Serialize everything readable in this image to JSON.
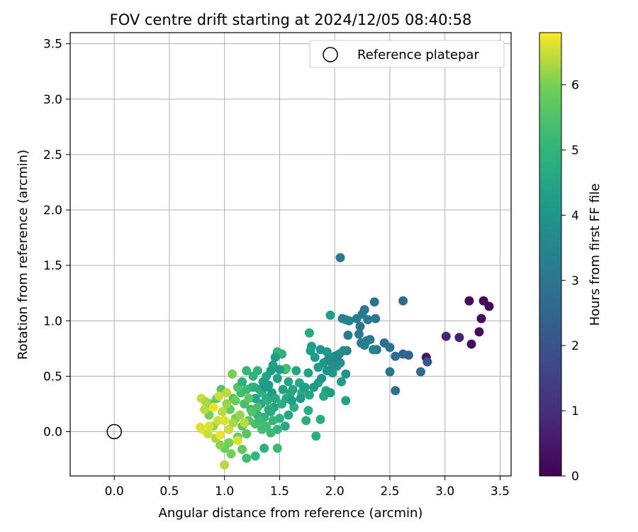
{
  "chart_data": {
    "type": "scatter",
    "title": "FOV centre drift starting at 2024/12/05 08:40:58",
    "xlabel": "Angular distance from reference (arcmin)",
    "ylabel": "Rotation from reference (arcmin)",
    "xlim": [
      -0.4,
      3.6
    ],
    "ylim": [
      -0.4,
      3.6
    ],
    "xticks": [
      "0.0",
      "0.5",
      "1.0",
      "1.5",
      "2.0",
      "2.5",
      "3.0",
      "3.5"
    ],
    "yticks": [
      "0.0",
      "0.5",
      "1.0",
      "1.5",
      "2.0",
      "2.5",
      "3.0",
      "3.5"
    ],
    "grid": true,
    "legend": {
      "label": "Reference platepar",
      "position": "top-right"
    },
    "reference_point": {
      "x": 0.0,
      "y": 0.0
    },
    "colorbar": {
      "label": "Hours from first FF file",
      "min": 0,
      "max": 6.8,
      "ticks": [
        "0",
        "1",
        "2",
        "3",
        "4",
        "5",
        "6"
      ],
      "colormap": "viridis"
    },
    "points": [
      {
        "x": 3.4,
        "y": 1.13,
        "t": 0.05
      },
      {
        "x": 3.35,
        "y": 1.18,
        "t": 0.1
      },
      {
        "x": 3.22,
        "y": 1.18,
        "t": 0.15
      },
      {
        "x": 3.33,
        "y": 1.02,
        "t": 0.2
      },
      {
        "x": 3.31,
        "y": 0.9,
        "t": 0.25
      },
      {
        "x": 3.24,
        "y": 0.79,
        "t": 0.3
      },
      {
        "x": 2.83,
        "y": 0.67,
        "t": 0.4
      },
      {
        "x": 3.13,
        "y": 0.85,
        "t": 0.7
      },
      {
        "x": 3.01,
        "y": 0.86,
        "t": 0.8
      },
      {
        "x": 2.84,
        "y": 0.63,
        "t": 2.0
      },
      {
        "x": 2.78,
        "y": 0.54,
        "t": 2.6
      },
      {
        "x": 2.67,
        "y": 0.69,
        "t": 2.4
      },
      {
        "x": 2.62,
        "y": 0.7,
        "t": 2.5
      },
      {
        "x": 2.62,
        "y": 1.18,
        "t": 2.6
      },
      {
        "x": 2.55,
        "y": 0.68,
        "t": 2.7
      },
      {
        "x": 2.55,
        "y": 0.37,
        "t": 2.8
      },
      {
        "x": 2.5,
        "y": 0.54,
        "t": 2.9
      },
      {
        "x": 2.45,
        "y": 0.8,
        "t": 2.8
      },
      {
        "x": 2.5,
        "y": 0.76,
        "t": 2.9
      },
      {
        "x": 2.38,
        "y": 0.74,
        "t": 3.0
      },
      {
        "x": 2.36,
        "y": 1.17,
        "t": 2.9
      },
      {
        "x": 2.37,
        "y": 1.02,
        "t": 3.0
      },
      {
        "x": 2.32,
        "y": 0.83,
        "t": 3.0
      },
      {
        "x": 2.3,
        "y": 1.01,
        "t": 3.1
      },
      {
        "x": 2.27,
        "y": 1.1,
        "t": 3.0
      },
      {
        "x": 2.25,
        "y": 1.06,
        "t": 3.1
      },
      {
        "x": 2.23,
        "y": 0.95,
        "t": 3.0
      },
      {
        "x": 2.2,
        "y": 1.02,
        "t": 3.2
      },
      {
        "x": 2.24,
        "y": 0.8,
        "t": 3.1
      },
      {
        "x": 2.27,
        "y": 0.78,
        "t": 3.2
      },
      {
        "x": 2.22,
        "y": 0.88,
        "t": 3.2
      },
      {
        "x": 2.13,
        "y": 1.0,
        "t": 3.3
      },
      {
        "x": 2.12,
        "y": 0.87,
        "t": 3.3
      },
      {
        "x": 2.1,
        "y": 1.01,
        "t": 3.4
      },
      {
        "x": 2.05,
        "y": 1.57,
        "t": 3.1
      },
      {
        "x": 2.07,
        "y": 1.02,
        "t": 3.4
      },
      {
        "x": 2.35,
        "y": 0.74,
        "t": 3.4
      },
      {
        "x": 2.29,
        "y": 0.82,
        "t": 3.3
      },
      {
        "x": 2.11,
        "y": 0.73,
        "t": 3.5
      },
      {
        "x": 2.08,
        "y": 0.73,
        "t": 3.7
      },
      {
        "x": 2.04,
        "y": 0.7,
        "t": 3.8
      },
      {
        "x": 2.05,
        "y": 0.62,
        "t": 3.9
      },
      {
        "x": 2.0,
        "y": 0.68,
        "t": 3.8
      },
      {
        "x": 1.97,
        "y": 0.63,
        "t": 4.0
      },
      {
        "x": 1.98,
        "y": 0.53,
        "t": 4.1
      },
      {
        "x": 2.02,
        "y": 0.59,
        "t": 3.9
      },
      {
        "x": 2.1,
        "y": 0.52,
        "t": 3.9
      },
      {
        "x": 2.06,
        "y": 0.45,
        "t": 4.2
      },
      {
        "x": 2.1,
        "y": 0.28,
        "t": 4.4
      },
      {
        "x": 1.96,
        "y": 1.05,
        "t": 4.3
      },
      {
        "x": 1.93,
        "y": 0.72,
        "t": 4.1
      },
      {
        "x": 1.9,
        "y": 0.62,
        "t": 4.2
      },
      {
        "x": 1.85,
        "y": 0.58,
        "t": 4.2
      },
      {
        "x": 1.87,
        "y": 0.74,
        "t": 4.0
      },
      {
        "x": 1.82,
        "y": 0.67,
        "t": 4.2
      },
      {
        "x": 1.79,
        "y": 0.77,
        "t": 4.3
      },
      {
        "x": 1.77,
        "y": 0.89,
        "t": 4.6
      },
      {
        "x": 1.76,
        "y": 0.53,
        "t": 4.4
      },
      {
        "x": 1.78,
        "y": 0.73,
        "t": 4.3
      },
      {
        "x": 1.85,
        "y": 0.44,
        "t": 4.4
      },
      {
        "x": 1.92,
        "y": 0.37,
        "t": 4.4
      },
      {
        "x": 1.96,
        "y": 0.35,
        "t": 4.3
      },
      {
        "x": 1.9,
        "y": 0.32,
        "t": 4.6
      },
      {
        "x": 1.87,
        "y": 0.11,
        "t": 4.7
      },
      {
        "x": 1.83,
        "y": -0.04,
        "t": 4.8
      },
      {
        "x": 1.76,
        "y": 0.19,
        "t": 4.7
      },
      {
        "x": 1.74,
        "y": 0.1,
        "t": 4.8
      },
      {
        "x": 1.77,
        "y": 0.33,
        "t": 4.5
      },
      {
        "x": 1.73,
        "y": 0.4,
        "t": 4.5
      },
      {
        "x": 1.65,
        "y": 0.55,
        "t": 4.5
      },
      {
        "x": 1.68,
        "y": 0.44,
        "t": 4.6
      },
      {
        "x": 1.7,
        "y": 0.35,
        "t": 4.7
      },
      {
        "x": 1.62,
        "y": 0.38,
        "t": 4.5
      },
      {
        "x": 1.58,
        "y": 0.45,
        "t": 4.5
      },
      {
        "x": 1.55,
        "y": 0.56,
        "t": 4.4
      },
      {
        "x": 1.52,
        "y": 0.7,
        "t": 4.8
      },
      {
        "x": 1.48,
        "y": 0.72,
        "t": 5.0
      },
      {
        "x": 1.46,
        "y": 0.67,
        "t": 4.3
      },
      {
        "x": 1.44,
        "y": 0.6,
        "t": 4.4
      },
      {
        "x": 1.48,
        "y": 0.48,
        "t": 4.4
      },
      {
        "x": 1.56,
        "y": 0.3,
        "t": 4.6
      },
      {
        "x": 1.6,
        "y": 0.35,
        "t": 4.5
      },
      {
        "x": 1.63,
        "y": 0.22,
        "t": 4.8
      },
      {
        "x": 1.58,
        "y": 0.15,
        "t": 4.6
      },
      {
        "x": 1.55,
        "y": 0.05,
        "t": 4.6
      },
      {
        "x": 1.5,
        "y": 0.12,
        "t": 4.9
      },
      {
        "x": 1.48,
        "y": -0.15,
        "t": 5.2
      },
      {
        "x": 1.36,
        "y": -0.15,
        "t": 4.9
      },
      {
        "x": 1.28,
        "y": -0.22,
        "t": 5.1
      },
      {
        "x": 1.2,
        "y": -0.24,
        "t": 5.3
      },
      {
        "x": 1.56,
        "y": 0.57,
        "t": 5.4
      },
      {
        "x": 1.5,
        "y": 0.56,
        "t": 4.3
      },
      {
        "x": 1.42,
        "y": 0.55,
        "t": 4.2
      },
      {
        "x": 1.38,
        "y": 0.5,
        "t": 4.4
      },
      {
        "x": 1.4,
        "y": 0.42,
        "t": 4.1
      },
      {
        "x": 1.35,
        "y": 0.45,
        "t": 4.3
      },
      {
        "x": 1.32,
        "y": 0.38,
        "t": 4.5
      },
      {
        "x": 1.3,
        "y": 0.55,
        "t": 4.9
      },
      {
        "x": 1.26,
        "y": 0.5,
        "t": 5.0
      },
      {
        "x": 1.2,
        "y": 0.55,
        "t": 5.1
      },
      {
        "x": 1.25,
        "y": 0.4,
        "t": 4.7
      },
      {
        "x": 1.28,
        "y": 0.3,
        "t": 4.5
      },
      {
        "x": 1.33,
        "y": 0.25,
        "t": 4.6
      },
      {
        "x": 1.38,
        "y": 0.3,
        "t": 4.4
      },
      {
        "x": 1.43,
        "y": 0.35,
        "t": 4.2
      },
      {
        "x": 1.45,
        "y": 0.22,
        "t": 4.5
      },
      {
        "x": 1.4,
        "y": 0.2,
        "t": 4.8
      },
      {
        "x": 1.36,
        "y": 0.13,
        "t": 5.0
      },
      {
        "x": 1.44,
        "y": 0.1,
        "t": 5.1
      },
      {
        "x": 1.48,
        "y": 0.02,
        "t": 5.0
      },
      {
        "x": 1.42,
        "y": -0.01,
        "t": 5.2
      },
      {
        "x": 1.34,
        "y": 0.02,
        "t": 5.3
      },
      {
        "x": 1.28,
        "y": 0.07,
        "t": 5.4
      },
      {
        "x": 1.22,
        "y": 0.1,
        "t": 5.6
      },
      {
        "x": 1.3,
        "y": 0.15,
        "t": 5.0
      },
      {
        "x": 1.24,
        "y": 0.2,
        "t": 5.2
      },
      {
        "x": 1.18,
        "y": 0.25,
        "t": 5.4
      },
      {
        "x": 1.15,
        "y": 0.35,
        "t": 5.3
      },
      {
        "x": 1.12,
        "y": 0.4,
        "t": 5.5
      },
      {
        "x": 1.08,
        "y": 0.3,
        "t": 5.6
      },
      {
        "x": 1.05,
        "y": 0.2,
        "t": 5.8
      },
      {
        "x": 1.1,
        "y": 0.12,
        "t": 5.9
      },
      {
        "x": 1.16,
        "y": 0.05,
        "t": 5.7
      },
      {
        "x": 1.2,
        "y": -0.02,
        "t": 5.6
      },
      {
        "x": 1.12,
        "y": -0.05,
        "t": 5.8
      },
      {
        "x": 1.04,
        "y": -0.1,
        "t": 6.0
      },
      {
        "x": 1.0,
        "y": -0.15,
        "t": 5.9
      },
      {
        "x": 0.96,
        "y": -0.12,
        "t": 6.1
      },
      {
        "x": 0.92,
        "y": -0.06,
        "t": 6.3
      },
      {
        "x": 1.06,
        "y": -0.2,
        "t": 6.0
      },
      {
        "x": 1.0,
        "y": -0.3,
        "t": 6.4
      },
      {
        "x": 0.9,
        "y": 0.05,
        "t": 6.2
      },
      {
        "x": 0.86,
        "y": 0.15,
        "t": 6.0
      },
      {
        "x": 0.88,
        "y": 0.25,
        "t": 5.8
      },
      {
        "x": 0.93,
        "y": 0.3,
        "t": 5.7
      },
      {
        "x": 0.97,
        "y": 0.38,
        "t": 5.6
      },
      {
        "x": 1.07,
        "y": 0.52,
        "t": 6.0
      },
      {
        "x": 1.02,
        "y": 0.25,
        "t": 6.2
      },
      {
        "x": 0.98,
        "y": 0.18,
        "t": 6.4
      },
      {
        "x": 0.94,
        "y": 0.1,
        "t": 6.5
      },
      {
        "x": 0.86,
        "y": 0.05,
        "t": 6.6
      },
      {
        "x": 0.8,
        "y": 0.02,
        "t": 6.7
      },
      {
        "x": 0.78,
        "y": 0.04,
        "t": 6.6
      },
      {
        "x": 0.82,
        "y": 0.2,
        "t": 6.4
      },
      {
        "x": 0.79,
        "y": 0.3,
        "t": 6.5
      },
      {
        "x": 0.83,
        "y": 0.27,
        "t": 6.3
      },
      {
        "x": 0.95,
        "y": 0.32,
        "t": 6.5
      },
      {
        "x": 1.0,
        "y": 0.1,
        "t": 6.6
      },
      {
        "x": 1.04,
        "y": 0.02,
        "t": 6.5
      },
      {
        "x": 1.08,
        "y": 0.08,
        "t": 6.3
      },
      {
        "x": 1.14,
        "y": 0.15,
        "t": 6.2
      },
      {
        "x": 1.18,
        "y": 0.08,
        "t": 6.4
      },
      {
        "x": 1.12,
        "y": -0.08,
        "t": 6.6
      },
      {
        "x": 0.96,
        "y": -0.03,
        "t": 6.7
      },
      {
        "x": 0.9,
        "y": 0.22,
        "t": 6.7
      },
      {
        "x": 1.02,
        "y": 0.35,
        "t": 6.4
      },
      {
        "x": 1.22,
        "y": 0.3,
        "t": 5.7
      },
      {
        "x": 1.25,
        "y": 0.18,
        "t": 5.5
      },
      {
        "x": 1.32,
        "y": 0.1,
        "t": 5.2
      },
      {
        "x": 1.38,
        "y": 0.05,
        "t": 5.3
      },
      {
        "x": 1.2,
        "y": 0.38,
        "t": 5.2
      },
      {
        "x": 1.16,
        "y": 0.45,
        "t": 4.9
      },
      {
        "x": 1.27,
        "y": 0.4,
        "t": 4.8
      },
      {
        "x": 1.34,
        "y": 0.35,
        "t": 4.9
      },
      {
        "x": 1.39,
        "y": 0.28,
        "t": 4.8
      },
      {
        "x": 1.46,
        "y": 0.3,
        "t": 4.6
      },
      {
        "x": 1.52,
        "y": 0.25,
        "t": 4.7
      },
      {
        "x": 1.53,
        "y": 0.38,
        "t": 4.4
      },
      {
        "x": 1.61,
        "y": 0.28,
        "t": 4.3
      },
      {
        "x": 1.69,
        "y": 0.3,
        "t": 4.2
      },
      {
        "x": 1.72,
        "y": 0.4,
        "t": 4.3
      },
      {
        "x": 1.81,
        "y": 0.4,
        "t": 4.1
      },
      {
        "x": 1.88,
        "y": 0.48,
        "t": 4.0
      },
      {
        "x": 1.93,
        "y": 0.55,
        "t": 3.9
      },
      {
        "x": 1.98,
        "y": 0.6,
        "t": 3.8
      },
      {
        "x": 1.94,
        "y": 0.65,
        "t": 3.7
      },
      {
        "x": 2.02,
        "y": 0.66,
        "t": 3.6
      },
      {
        "x": 1.1,
        "y": 0.28,
        "t": 5.9
      },
      {
        "x": 1.3,
        "y": 0.22,
        "t": 5.4
      },
      {
        "x": 1.42,
        "y": 0.18,
        "t": 4.7
      },
      {
        "x": 1.37,
        "y": 0.4,
        "t": 4.2
      },
      {
        "x": 0.85,
        "y": -0.02,
        "t": 6.5
      },
      {
        "x": 1.16,
        "y": -0.16,
        "t": 5.8
      }
    ]
  }
}
